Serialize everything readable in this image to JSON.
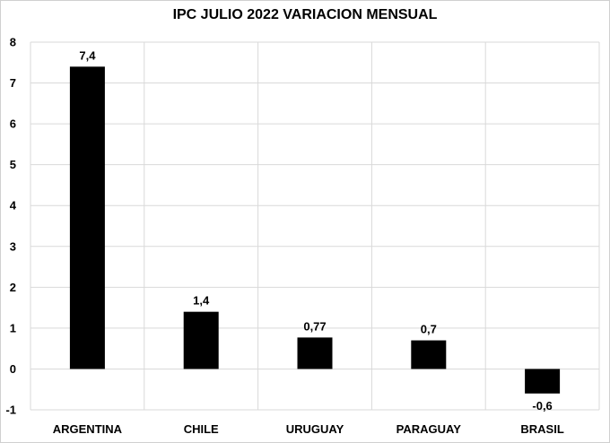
{
  "chart_data": {
    "type": "bar",
    "title": "IPC JULIO 2022 VARIACION MENSUAL",
    "categories": [
      "ARGENTINA",
      "CHILE",
      "URUGUAY",
      "PARAGUAY",
      "BRASIL"
    ],
    "values": [
      7.4,
      1.4,
      0.77,
      0.7,
      -0.6
    ],
    "data_labels": [
      "7,4",
      "1,4",
      "0,77",
      "0,7",
      "-0,6"
    ],
    "yticks": [
      "8",
      "7",
      "6",
      "5",
      "4",
      "3",
      "2",
      "1",
      "0",
      "-1"
    ],
    "ylim": [
      -1,
      8
    ],
    "xlabel": "",
    "ylabel": "",
    "grid": true,
    "bar_color": "#000000",
    "grid_color": "#d9d9d9"
  }
}
